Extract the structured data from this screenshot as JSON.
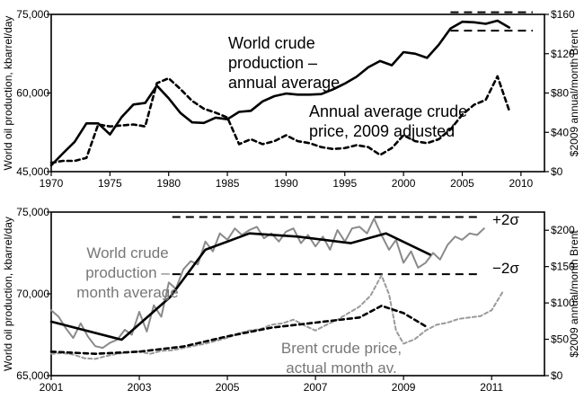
{
  "colors": {
    "production": "#000000",
    "price": "#000000",
    "monthly_production": "#8a8a8a",
    "brent_monthly": "#9a9a9a",
    "axes": "#000000"
  },
  "chart_data": [
    {
      "type": "line",
      "ylabel": "World oil production, kbarrel/day",
      "ylabel_right": "$2009 annual/month Brent",
      "xlim": [
        1970,
        2012
      ],
      "ylim": [
        45000,
        75000
      ],
      "ylim_right": [
        0,
        160
      ],
      "xticks": [
        1970,
        1975,
        1980,
        1985,
        1990,
        1995,
        2000,
        2005,
        2010
      ],
      "xtick_labels": [
        "1970",
        "1975",
        "1980",
        "1985",
        "1990",
        "1995",
        "2000",
        "2005",
        "2010"
      ],
      "yticks": [
        45000,
        60000,
        75000
      ],
      "ytick_labels": [
        "45,000",
        "60,000",
        "75,000"
      ],
      "yticks_right": [
        0,
        40,
        80,
        120,
        160
      ],
      "ytick_labels_right": [
        "$0",
        "$40",
        "$80",
        "$120",
        "$160"
      ],
      "grid": false,
      "annotations": [
        {
          "text": "World crude",
          "series": "production"
        },
        {
          "text": "production –",
          "series": "production"
        },
        {
          "text": "annual average",
          "series": "production"
        },
        {
          "text": "Annual average crude",
          "series": "price"
        },
        {
          "text": "price, 2009 adjusted",
          "series": "price"
        }
      ],
      "reference_lines": [
        {
          "y": 75400,
          "x_from": 2004,
          "x_to": 2011,
          "style": "dashed"
        },
        {
          "y": 71900,
          "x_from": 2004,
          "x_to": 2011,
          "style": "dashed"
        }
      ],
      "series": [
        {
          "axis": "left",
          "style": "solid",
          "x": [
            1970,
            1971,
            1972,
            1973,
            1974,
            1975,
            1976,
            1977,
            1978,
            1979,
            1980,
            1981,
            1982,
            1983,
            1984,
            1985,
            1986,
            1987,
            1988,
            1989,
            1990,
            1991,
            1992,
            1993,
            1994,
            1995,
            1996,
            1997,
            1998,
            1999,
            2000,
            2001,
            2002,
            2003,
            2004,
            2005,
            2006,
            2007,
            2008,
            2009
          ],
          "values": [
            46200,
            48500,
            50700,
            54200,
            54200,
            52100,
            55400,
            57800,
            58100,
            61400,
            59000,
            56200,
            54400,
            54300,
            55300,
            55000,
            56400,
            56600,
            58400,
            59400,
            59900,
            59700,
            59700,
            59800,
            60700,
            61800,
            63100,
            64900,
            66100,
            65300,
            67800,
            67500,
            66700,
            69200,
            72300,
            73600,
            73500,
            73200,
            73800,
            72500
          ]
        },
        {
          "axis": "right",
          "style": "dashed",
          "x": [
            1970,
            1971,
            1972,
            1973,
            1974,
            1975,
            1976,
            1977,
            1978,
            1979,
            1980,
            1981,
            1982,
            1983,
            1984,
            1985,
            1986,
            1987,
            1988,
            1989,
            1990,
            1991,
            1992,
            1993,
            1994,
            1995,
            1996,
            1997,
            1998,
            1999,
            2000,
            2001,
            2002,
            2003,
            2004,
            2005,
            2006,
            2007,
            2008,
            2009
          ],
          "values": [
            9,
            11,
            11,
            14,
            48,
            46,
            47,
            48,
            46,
            90,
            95,
            84,
            72,
            64,
            60,
            55,
            28,
            33,
            28,
            31,
            37,
            31,
            29,
            25,
            23,
            24,
            27,
            25,
            17,
            24,
            37,
            31,
            29,
            33,
            43,
            58,
            68,
            73,
            97,
            62
          ]
        }
      ]
    },
    {
      "type": "line",
      "ylabel": "World oil production, kbarrel/day",
      "ylabel_right": "$2009 annual/month Brent",
      "xlim": [
        2001,
        2012.2
      ],
      "ylim": [
        65000,
        75000
      ],
      "ylim_right": [
        0,
        225
      ],
      "xticks": [
        2001,
        2003,
        2005,
        2007,
        2009,
        2011
      ],
      "xtick_labels": [
        "2001",
        "2003",
        "2005",
        "2007",
        "2009",
        "2011"
      ],
      "yticks": [
        65000,
        70000,
        75000
      ],
      "ytick_labels": [
        "65,000",
        "70,000",
        "75,000"
      ],
      "yticks_right": [
        0,
        50,
        100,
        150,
        200
      ],
      "ytick_labels_right": [
        "$0",
        "$50",
        "$100",
        "$150",
        "$200"
      ],
      "grid": false,
      "annotations": [
        {
          "text": "World crude",
          "series": "monthly production"
        },
        {
          "text": "production –",
          "series": "monthly production"
        },
        {
          "text": "month average",
          "series": "monthly production"
        },
        {
          "text": "Brent crude price,",
          "series": "brent"
        },
        {
          "text": "actual month av.",
          "series": "brent"
        },
        {
          "text": "+2σ",
          "series": "reference"
        },
        {
          "text": "−2σ",
          "series": "reference"
        }
      ],
      "reference_lines": [
        {
          "label": "+2σ",
          "y": 74700,
          "x_from": 2003.75,
          "x_to": 2010.75,
          "style": "dashed"
        },
        {
          "label": "−2σ",
          "y": 71200,
          "x_from": 2003.75,
          "x_to": 2010.75,
          "style": "dashed"
        }
      ],
      "series": [
        {
          "axis": "left",
          "style": "solid",
          "color_key": "monthly_production",
          "x": [
            2001.0,
            2001.17,
            2001.33,
            2001.5,
            2001.67,
            2001.83,
            2002.0,
            2002.17,
            2002.33,
            2002.5,
            2002.67,
            2002.83,
            2003.0,
            2003.17,
            2003.33,
            2003.5,
            2003.67,
            2003.83,
            2004.0,
            2004.17,
            2004.33,
            2004.5,
            2004.67,
            2004.83,
            2005.0,
            2005.17,
            2005.33,
            2005.5,
            2005.67,
            2005.83,
            2006.0,
            2006.17,
            2006.33,
            2006.5,
            2006.67,
            2006.83,
            2007.0,
            2007.17,
            2007.33,
            2007.5,
            2007.67,
            2007.83,
            2008.0,
            2008.17,
            2008.33,
            2008.5,
            2008.67,
            2008.83,
            2009.0,
            2009.17,
            2009.33,
            2009.5,
            2009.67,
            2009.83,
            2010.0,
            2010.17,
            2010.33,
            2010.5,
            2010.67,
            2010.83
          ],
          "values": [
            69000,
            68600,
            67900,
            67300,
            68200,
            67400,
            66800,
            66700,
            67000,
            67200,
            67800,
            67500,
            68900,
            67700,
            69300,
            68600,
            70700,
            70300,
            71500,
            72000,
            71800,
            73200,
            72600,
            73700,
            73300,
            74000,
            73600,
            73900,
            74100,
            73400,
            73700,
            73200,
            73800,
            74000,
            73100,
            73600,
            72900,
            73500,
            72700,
            73900,
            73200,
            74000,
            74100,
            73700,
            74600,
            73600,
            72700,
            73300,
            71900,
            72600,
            71600,
            71900,
            72500,
            72100,
            73000,
            73500,
            73300,
            73700,
            73600,
            74000
          ]
        },
        {
          "axis": "left",
          "style": "solid",
          "x": [
            2001.0,
            2002.6,
            2003.7,
            2004.5,
            2005.5,
            2006.6,
            2007.8,
            2008.6,
            2009.6
          ],
          "values": [
            68300,
            67200,
            69800,
            72700,
            73700,
            73500,
            73100,
            73700,
            72400
          ]
        },
        {
          "axis": "right",
          "style": "dashed",
          "color_key": "brent_monthly",
          "x": [
            2001.0,
            2001.25,
            2001.5,
            2001.75,
            2002.0,
            2002.25,
            2002.5,
            2002.75,
            2003.0,
            2003.25,
            2003.5,
            2003.75,
            2004.0,
            2004.25,
            2004.5,
            2004.75,
            2005.0,
            2005.25,
            2005.5,
            2005.75,
            2006.0,
            2006.25,
            2006.5,
            2006.75,
            2007.0,
            2007.25,
            2007.5,
            2007.75,
            2008.0,
            2008.25,
            2008.5,
            2008.67,
            2008.83,
            2009.0,
            2009.25,
            2009.5,
            2009.75,
            2010.0,
            2010.25,
            2010.5,
            2010.75,
            2011.0,
            2011.25
          ],
          "values": [
            30,
            31,
            29,
            24,
            23,
            27,
            30,
            32,
            33,
            30,
            34,
            35,
            38,
            41,
            44,
            48,
            52,
            58,
            62,
            64,
            70,
            72,
            77,
            69,
            62,
            70,
            77,
            86,
            95,
            110,
            138,
            112,
            62,
            44,
            50,
            62,
            70,
            73,
            78,
            80,
            82,
            90,
            115
          ]
        },
        {
          "axis": "right",
          "style": "dashed",
          "x": [
            2001.0,
            2002.0,
            2003.0,
            2004.0,
            2005.0,
            2006.0,
            2007.0,
            2008.0,
            2008.5,
            2009.0,
            2009.5
          ],
          "values": [
            33,
            30,
            33,
            40,
            54,
            66,
            73,
            80,
            96,
            86,
            68
          ]
        }
      ]
    }
  ]
}
